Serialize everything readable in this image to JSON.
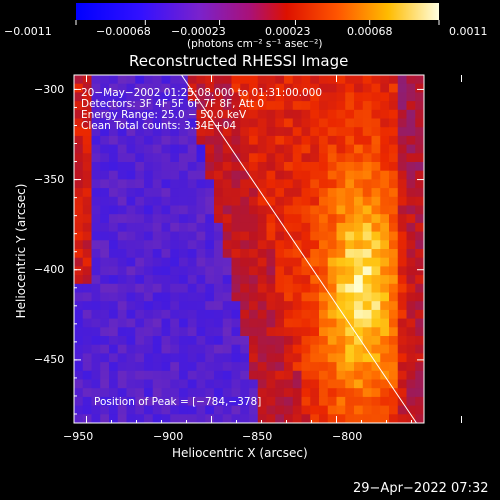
{
  "chart_data": {
    "type": "heatmap",
    "title": "Reconstructed RHESSI Image",
    "xlabel": "Heliocentric X (arcsec)",
    "ylabel": "Heliocentric Y (arcsec)",
    "xlim": [
      -955,
      -815
    ],
    "ylim": [
      -485,
      -292
    ],
    "xticks": [
      -950,
      -900,
      -850,
      -800
    ],
    "xtick_labels": [
      "−950",
      "−900",
      "−850",
      "−800"
    ],
    "yticks": [
      -300,
      -350,
      -400,
      -450
    ],
    "ytick_labels": [
      "−300",
      "−350",
      "−400",
      "−450"
    ],
    "colorbar": {
      "range": [
        -0.0011,
        0.0011
      ],
      "ticks": [
        -0.0011,
        -0.00068,
        -0.00023,
        0.00023,
        0.00068,
        0.0011
      ],
      "tick_labels": [
        "−0.0011",
        "−0.00068",
        "−0.00023",
        "0.00023",
        "0.00068",
        "0.0011"
      ],
      "units": "(photons cm⁻² s⁻¹ asec⁻²)"
    },
    "annotations": [
      "20−May−2002 01:25:08.000 to 01:31:00.000",
      "Detectors: 3F 4F 5F 6F 7F 8F, Att 0",
      "Energy Range: 25.0 − 50.0 keV",
      "Clean     Total counts: 3.34E+04"
    ],
    "peak_label": "Position of Peak = [−784,−378]",
    "peak": [
      -784,
      -378
    ],
    "limb_line": [
      [
        -912,
        -292
      ],
      [
        -818,
        -485
      ]
    ],
    "grid": false
  },
  "footer": {
    "timestamp": "29−Apr−2022 07:32"
  }
}
